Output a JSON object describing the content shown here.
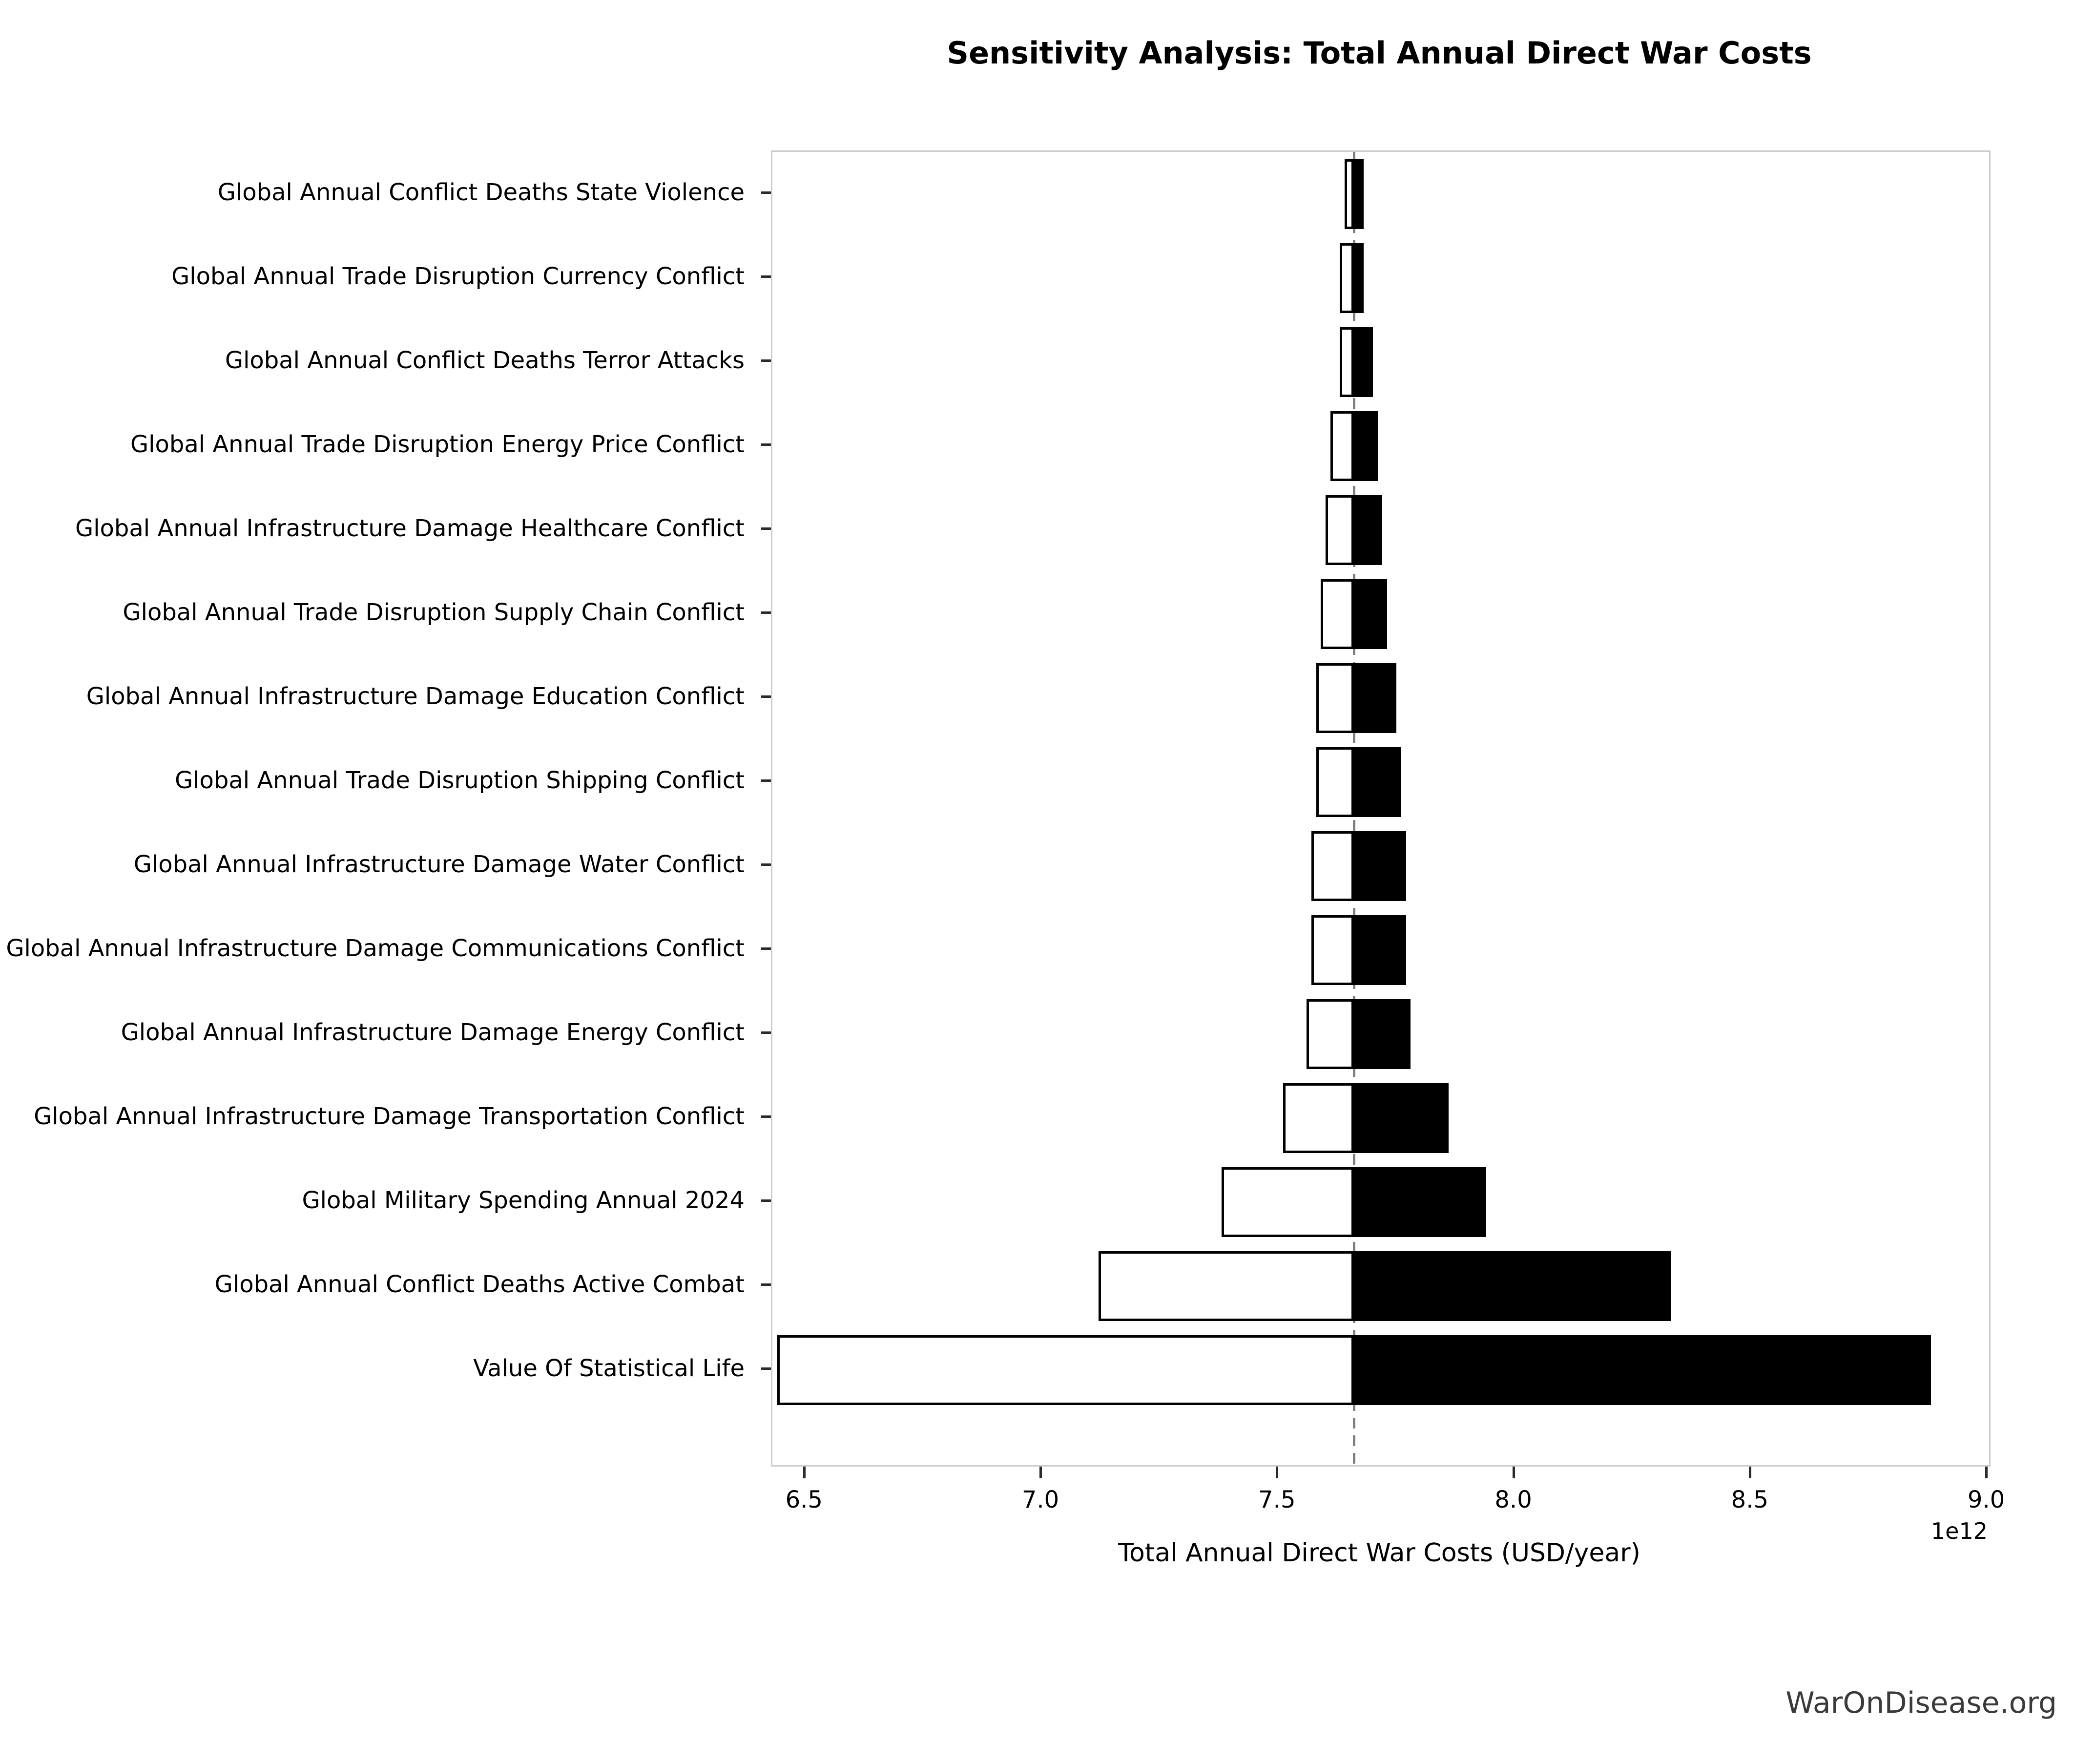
{
  "chart_data": {
    "type": "bar",
    "variant": "tornado-sensitivity",
    "title": "Sensitivity Analysis: Total Annual Direct War Costs",
    "xlabel": "Total Annual Direct War Costs (USD/year)",
    "x_offset_label": "1e12",
    "units": "trillion USD/year (1e12)",
    "xlim": [
      6.43,
      9.003
    ],
    "x_ticks": [
      6.5,
      7.0,
      7.5,
      8.0,
      8.5,
      9.0
    ],
    "x_tick_labels": [
      "6.5",
      "7.0",
      "7.5",
      "8.0",
      "8.5",
      "9.0"
    ],
    "baseline": 7.66,
    "grid": false,
    "legend": "none",
    "watermark": "WarOnDisease.org",
    "colors": {
      "low_fill": "#ffffff",
      "low_edge": "#000000",
      "high_fill": "#000000",
      "baseline_line": "#7f7f7f",
      "spine": "#cccccc",
      "tick": "#2a2a2a",
      "text": "#000000",
      "watermark": "#3a3a3a"
    },
    "rows": [
      {
        "label": "Global Annual Conflict Deaths State Violence",
        "low": 7.64,
        "high": 7.68
      },
      {
        "label": "Global Annual Trade Disruption Currency Conflict",
        "low": 7.63,
        "high": 7.68
      },
      {
        "label": "Global Annual Conflict Deaths Terror Attacks",
        "low": 7.63,
        "high": 7.7
      },
      {
        "label": "Global Annual Trade Disruption Energy Price Conflict",
        "low": 7.61,
        "high": 7.71
      },
      {
        "label": "Global Annual Infrastructure Damage Healthcare Conflict",
        "low": 7.6,
        "high": 7.72
      },
      {
        "label": "Global Annual Trade Disruption Supply Chain Conflict",
        "low": 7.59,
        "high": 7.73
      },
      {
        "label": "Global Annual Infrastructure Damage Education Conflict",
        "low": 7.58,
        "high": 7.75
      },
      {
        "label": "Global Annual Trade Disruption Shipping Conflict",
        "low": 7.58,
        "high": 7.76
      },
      {
        "label": "Global Annual Infrastructure Damage Water Conflict",
        "low": 7.57,
        "high": 7.77
      },
      {
        "label": "Global Annual Infrastructure Damage Communications Conflict",
        "low": 7.57,
        "high": 7.77
      },
      {
        "label": "Global Annual Infrastructure Damage Energy Conflict",
        "low": 7.56,
        "high": 7.78
      },
      {
        "label": "Global Annual Infrastructure Damage Transportation Conflict",
        "low": 7.51,
        "high": 7.86
      },
      {
        "label": "Global Military Spending Annual 2024",
        "low": 7.38,
        "high": 7.94
      },
      {
        "label": "Global Annual Conflict Deaths Active Combat",
        "low": 7.12,
        "high": 8.33
      },
      {
        "label": "Value Of Statistical Life",
        "low": 6.44,
        "high": 8.88
      }
    ]
  }
}
